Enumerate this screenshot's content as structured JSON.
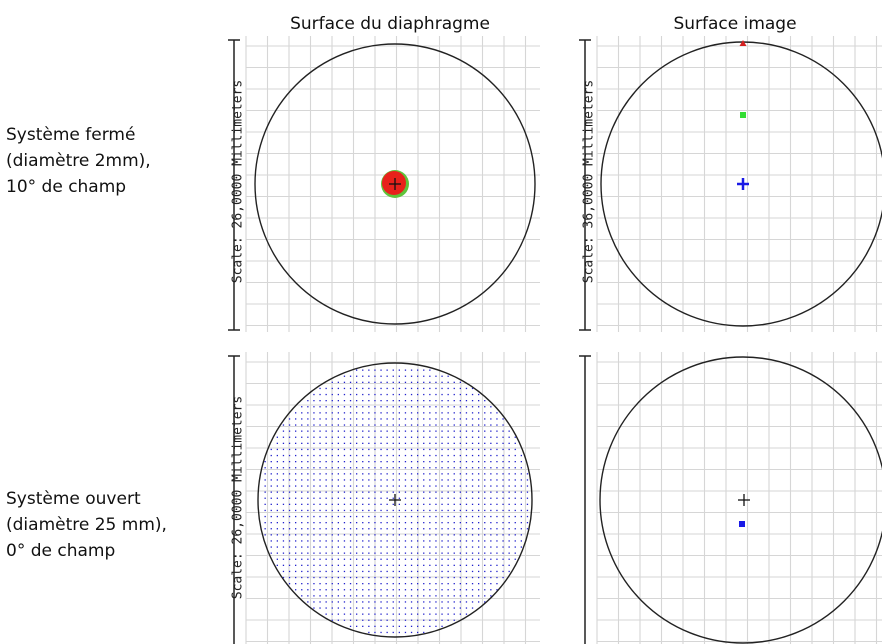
{
  "columns": [
    {
      "title": "Surface du diaphragme"
    },
    {
      "title": "Surface image"
    }
  ],
  "rows": [
    {
      "label_lines": [
        "Système fermé",
        "(diamètre 2mm),",
        "10° de champ"
      ]
    },
    {
      "label_lines": [
        "Système ouvert",
        "(diamètre 25 mm),",
        "0° de champ"
      ]
    }
  ],
  "panels": [
    {
      "scale_text": "Scale: 26,0000 Millimeters",
      "content": "small-spot"
    },
    {
      "scale_text": "Scale: 36,0000 Millimeters",
      "content": "field-markers"
    },
    {
      "scale_text": "Scale: 26,0000 Millimeters",
      "content": "dot-grid"
    },
    {
      "scale_text": "",
      "content": "single-marker"
    }
  ],
  "colors": {
    "grid": "#d6d6d6",
    "circle": "#222222",
    "spot_red": "#e8211b",
    "spot_green": "#5fc43a",
    "marker_red": "#d42020",
    "marker_green": "#33dd33",
    "marker_blue": "#1a1ae6",
    "dots_blue": "#2222cc"
  },
  "icons": [
    "crosshair-icon",
    "scale-bar"
  ]
}
